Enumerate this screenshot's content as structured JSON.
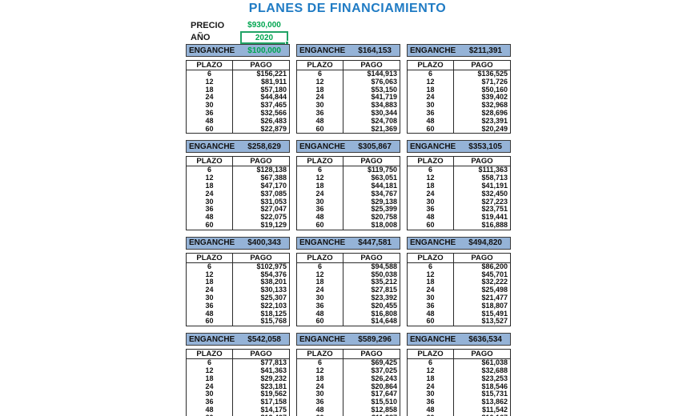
{
  "title": "PLANES DE FINANCIAMIENTO",
  "inputs": {
    "precio_label": "PRECIO",
    "precio_value": "$930,000",
    "anio_label": "AÑO",
    "anio_value": "2020"
  },
  "table_headers": {
    "enganche_label": "ENGANCHE",
    "plazo": "PLAZO",
    "pago": "PAGO"
  },
  "plazos": [
    "6",
    "12",
    "18",
    "24",
    "30",
    "36",
    "48",
    "60"
  ],
  "colors": {
    "title_blue": "#1f7bc4",
    "header_fill": "#95b3d7",
    "value_green": "#00a550",
    "selection_green": "#21a366"
  },
  "plans": [
    {
      "enganche": "$100,000",
      "highlight": true,
      "pagos": [
        "$156,221",
        "$81,911",
        "$57,180",
        "$44,844",
        "$37,465",
        "$32,566",
        "$26,483",
        "$22,879"
      ]
    },
    {
      "enganche": "$164,153",
      "highlight": false,
      "pagos": [
        "$144,913",
        "$76,063",
        "$53,150",
        "$41,719",
        "$34,883",
        "$30,344",
        "$24,708",
        "$21,369"
      ]
    },
    {
      "enganche": "$211,391",
      "highlight": false,
      "pagos": [
        "$136,525",
        "$71,726",
        "$50,160",
        "$39,402",
        "$32,968",
        "$28,696",
        "$23,391",
        "$20,249"
      ]
    },
    {
      "enganche": "$258,629",
      "highlight": false,
      "pagos": [
        "$128,138",
        "$67,388",
        "$47,170",
        "$37,085",
        "$31,053",
        "$27,047",
        "$22,075",
        "$19,129"
      ]
    },
    {
      "enganche": "$305,867",
      "highlight": false,
      "pagos": [
        "$119,750",
        "$63,051",
        "$44,181",
        "$34,767",
        "$29,138",
        "$25,399",
        "$20,758",
        "$18,008"
      ]
    },
    {
      "enganche": "$353,105",
      "highlight": false,
      "pagos": [
        "$111,363",
        "$58,713",
        "$41,191",
        "$32,450",
        "$27,223",
        "$23,751",
        "$19,441",
        "$16,888"
      ]
    },
    {
      "enganche": "$400,343",
      "highlight": false,
      "pagos": [
        "$102,975",
        "$54,376",
        "$38,201",
        "$30,133",
        "$25,307",
        "$22,103",
        "$18,125",
        "$15,768"
      ]
    },
    {
      "enganche": "$447,581",
      "highlight": false,
      "pagos": [
        "$94,588",
        "$50,038",
        "$35,212",
        "$27,815",
        "$23,392",
        "$20,455",
        "$16,808",
        "$14,648"
      ]
    },
    {
      "enganche": "$494,820",
      "highlight": false,
      "pagos": [
        "$86,200",
        "$45,701",
        "$32,222",
        "$25,498",
        "$21,477",
        "$18,807",
        "$15,491",
        "$13,527"
      ]
    },
    {
      "enganche": "$542,058",
      "highlight": false,
      "pagos": [
        "$77,813",
        "$41,363",
        "$29,232",
        "$23,181",
        "$19,562",
        "$17,158",
        "$14,175",
        "$12,407"
      ]
    },
    {
      "enganche": "$589,296",
      "highlight": false,
      "pagos": [
        "$69,425",
        "$37,025",
        "$26,243",
        "$20,864",
        "$17,647",
        "$15,510",
        "$12,858",
        "$11,287"
      ]
    },
    {
      "enganche": "$636,534",
      "highlight": false,
      "pagos": [
        "$61,038",
        "$32,688",
        "$23,253",
        "$18,546",
        "$15,731",
        "$13,862",
        "$11,542",
        "$10,167"
      ]
    }
  ]
}
